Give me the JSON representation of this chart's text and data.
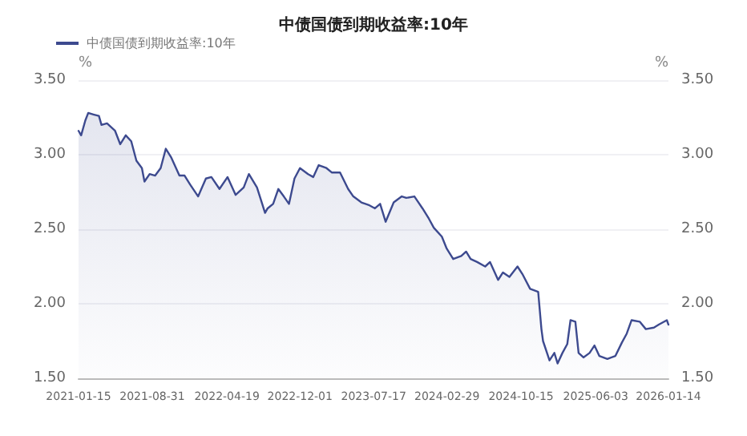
{
  "chart_data": {
    "type": "area",
    "title": "中债国债到期收益率:10年",
    "ylabel": "%",
    "y2label": "%",
    "legend": "top left",
    "grid": "y",
    "marker": "none",
    "line_style": "solid",
    "xlim": [
      "2021-01-15",
      "2026-01-14"
    ],
    "xticks": [
      "2021-01-15",
      "2021-08-31",
      "2022-04-19",
      "2022-12-01",
      "2023-07-17",
      "2024-02-29",
      "2024-10-15",
      "2025-06-03",
      "2026-01-14"
    ],
    "ylim": [
      1.5,
      3.5
    ],
    "yticks": [
      {
        "value": 1.5,
        "label": "1.50"
      },
      {
        "value": 2,
        "label": "2.00"
      },
      {
        "value": 2.5,
        "label": "2.50"
      },
      {
        "value": 3,
        "label": "3.00"
      },
      {
        "value": 3.5,
        "label": "3.50"
      }
    ],
    "y2lim": [
      1.5,
      3.5
    ],
    "y2ticks": [
      {
        "value": 1.5,
        "label": "1.50"
      },
      {
        "value": 2,
        "label": "2.00"
      },
      {
        "value": 2.5,
        "label": "2.50"
      },
      {
        "value": 3,
        "label": "3.00"
      },
      {
        "value": 3.5,
        "label": "3.50"
      }
    ],
    "x": [
      "2021-01-15",
      "2021-01-23",
      "2021-02-05",
      "2021-02-14",
      "2021-03-02",
      "2021-03-19",
      "2021-03-27",
      "2021-04-13",
      "2021-05-08",
      "2021-05-24",
      "2021-06-10",
      "2021-06-27",
      "2021-07-13",
      "2021-07-30",
      "2021-08-07",
      "2021-08-23",
      "2021-09-09",
      "2021-09-26",
      "2021-10-12",
      "2021-10-29",
      "2021-11-23",
      "2021-12-09",
      "2021-12-26",
      "2022-01-20",
      "2022-02-13",
      "2022-03-02",
      "2022-03-27",
      "2022-04-21",
      "2022-05-16",
      "2022-06-10",
      "2022-06-26",
      "2022-07-21",
      "2022-08-15",
      "2022-08-23",
      "2022-09-09",
      "2022-09-25",
      "2022-10-12",
      "2022-10-28",
      "2022-11-14",
      "2022-12-01",
      "2022-12-26",
      "2023-01-11",
      "2023-01-28",
      "2023-02-21",
      "2023-03-10",
      "2023-04-04",
      "2023-04-29",
      "2023-05-15",
      "2023-06-09",
      "2023-07-04",
      "2023-07-21",
      "2023-08-06",
      "2023-08-23",
      "2023-09-17",
      "2023-10-12",
      "2023-10-26",
      "2023-11-20",
      "2023-12-15",
      "2024-01-04",
      "2024-01-19",
      "2024-02-13",
      "2024-02-28",
      "2024-03-19",
      "2024-04-13",
      "2024-04-28",
      "2024-05-12",
      "2024-06-01",
      "2024-06-26",
      "2024-07-11",
      "2024-08-05",
      "2024-08-20",
      "2024-09-09",
      "2024-10-04",
      "2024-10-19",
      "2024-11-12",
      "2024-12-07",
      "2024-12-17",
      "2024-12-22",
      "2025-01-11",
      "2025-01-26",
      "2025-02-05",
      "2025-02-20",
      "2025-03-07",
      "2025-03-17",
      "2025-04-01",
      "2025-04-11",
      "2025-04-26",
      "2025-05-15",
      "2025-05-30",
      "2025-06-14",
      "2025-07-09",
      "2025-08-03",
      "2025-08-23",
      "2025-09-07",
      "2025-09-22",
      "2025-10-17",
      "2025-11-05",
      "2025-11-30",
      "2025-12-15",
      "2026-01-09",
      "2026-01-14"
    ],
    "series": [
      {
        "name": "中债国债到期收益率:10年",
        "color": "#3d4a8f",
        "values": [
          3.16,
          3.13,
          3.23,
          3.28,
          3.27,
          3.26,
          3.2,
          3.21,
          3.16,
          3.07,
          3.13,
          3.09,
          2.96,
          2.91,
          2.82,
          2.87,
          2.86,
          2.91,
          3.04,
          2.98,
          2.86,
          2.86,
          2.8,
          2.72,
          2.84,
          2.85,
          2.77,
          2.85,
          2.73,
          2.78,
          2.87,
          2.78,
          2.61,
          2.64,
          2.67,
          2.77,
          2.72,
          2.67,
          2.84,
          2.91,
          2.87,
          2.85,
          2.93,
          2.91,
          2.88,
          2.88,
          2.77,
          2.72,
          2.68,
          2.66,
          2.64,
          2.67,
          2.55,
          2.68,
          2.72,
          2.71,
          2.72,
          2.64,
          2.57,
          2.51,
          2.45,
          2.37,
          2.3,
          2.32,
          2.35,
          2.3,
          2.28,
          2.25,
          2.28,
          2.16,
          2.21,
          2.18,
          2.25,
          2.2,
          2.1,
          2.08,
          1.83,
          1.75,
          1.62,
          1.67,
          1.6,
          1.67,
          1.73,
          1.89,
          1.88,
          1.67,
          1.64,
          1.67,
          1.72,
          1.65,
          1.63,
          1.65,
          1.74,
          1.8,
          1.89,
          1.88,
          1.83,
          1.84,
          1.86,
          1.89,
          1.86
        ]
      }
    ]
  }
}
